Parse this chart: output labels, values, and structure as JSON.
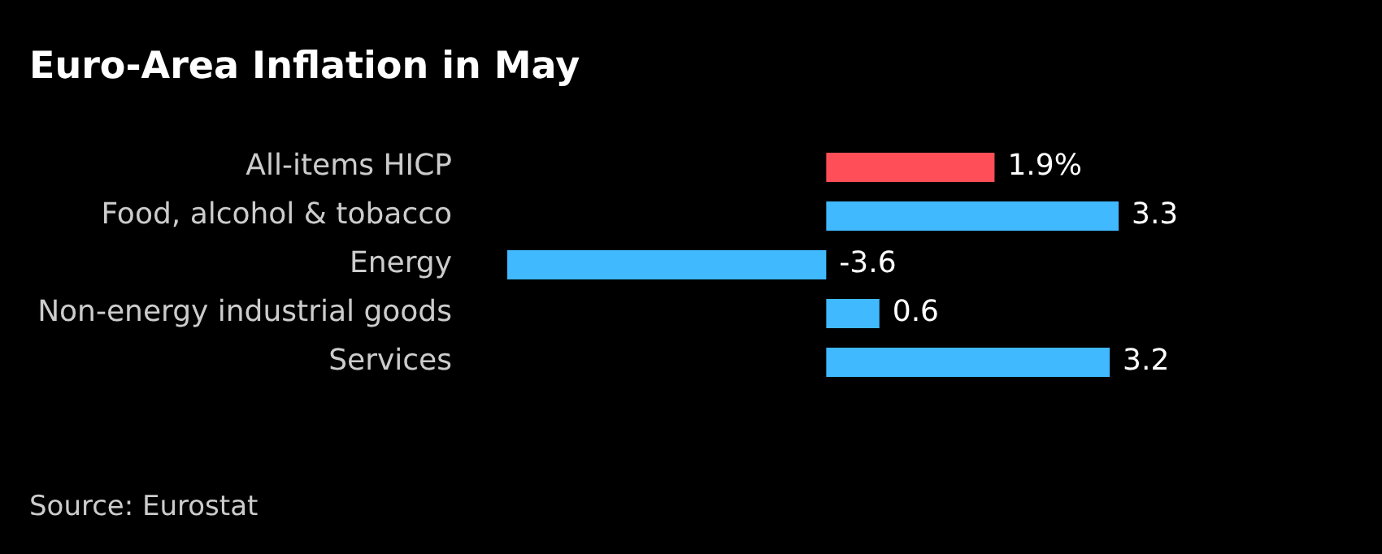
{
  "chart_data": {
    "type": "bar",
    "orientation": "horizontal",
    "title": "Euro-Area Inflation in May",
    "categories": [
      "All-items HICP",
      "Food, alcohol & tobacco",
      "Energy",
      "Non-energy industrial goods",
      "Services"
    ],
    "values": [
      1.9,
      3.3,
      -3.6,
      0.6,
      3.2
    ],
    "colors": [
      "#ff4e57",
      "#40b9ff",
      "#40b9ff",
      "#40b9ff",
      "#40b9ff"
    ],
    "value_labels": [
      "1.9%",
      "3.3",
      "-3.6",
      "0.6",
      "3.2"
    ],
    "annotations": [
      "Source: Eurostat"
    ]
  }
}
